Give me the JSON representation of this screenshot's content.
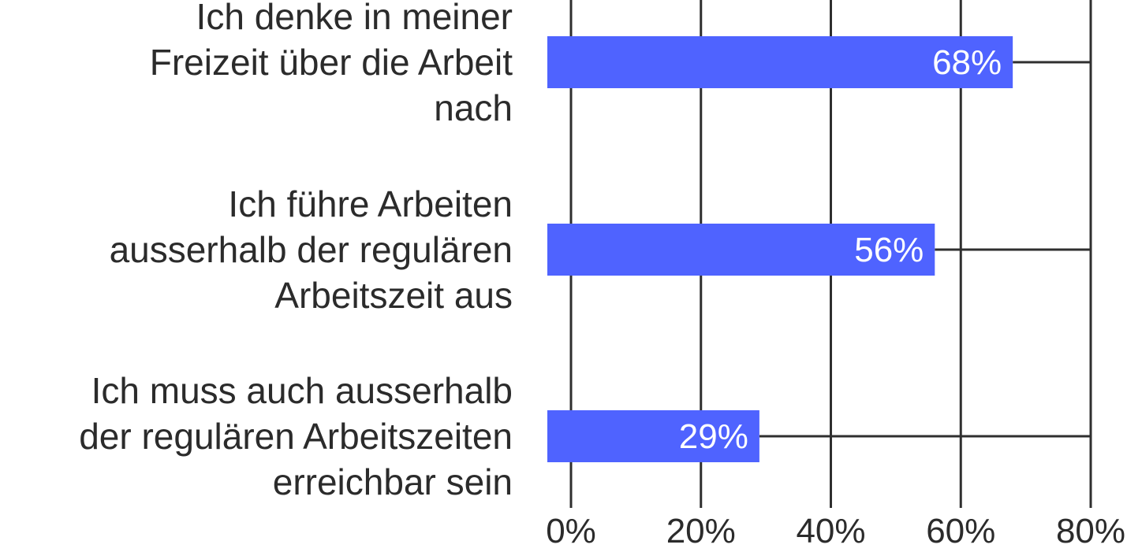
{
  "chart_data": {
    "type": "bar",
    "orientation": "horizontal",
    "categories": [
      [
        "Ich denke in meiner",
        "Freizeit über die Arbeit",
        "nach"
      ],
      [
        "Ich führe Arbeiten",
        "ausserhalb der regulären",
        "Arbeitszeit aus"
      ],
      [
        "Ich muss auch ausserhalb",
        "der regulären Arbeitszeiten",
        "erreichbar sein"
      ]
    ],
    "values": [
      68,
      56,
      29
    ],
    "data_labels": [
      "68%",
      "56%",
      "29%"
    ],
    "xlim": [
      0,
      80
    ],
    "x_ticks": [
      0,
      20,
      40,
      60,
      80
    ],
    "x_tick_labels": [
      "0%",
      "20%",
      "40%",
      "60%",
      "80%"
    ],
    "grid": true,
    "legend": "none",
    "colors": {
      "bar": "#4f63ff",
      "grid": "#2f2f2f",
      "text": "#2b2b2b",
      "bar_label": "#ffffff"
    }
  }
}
